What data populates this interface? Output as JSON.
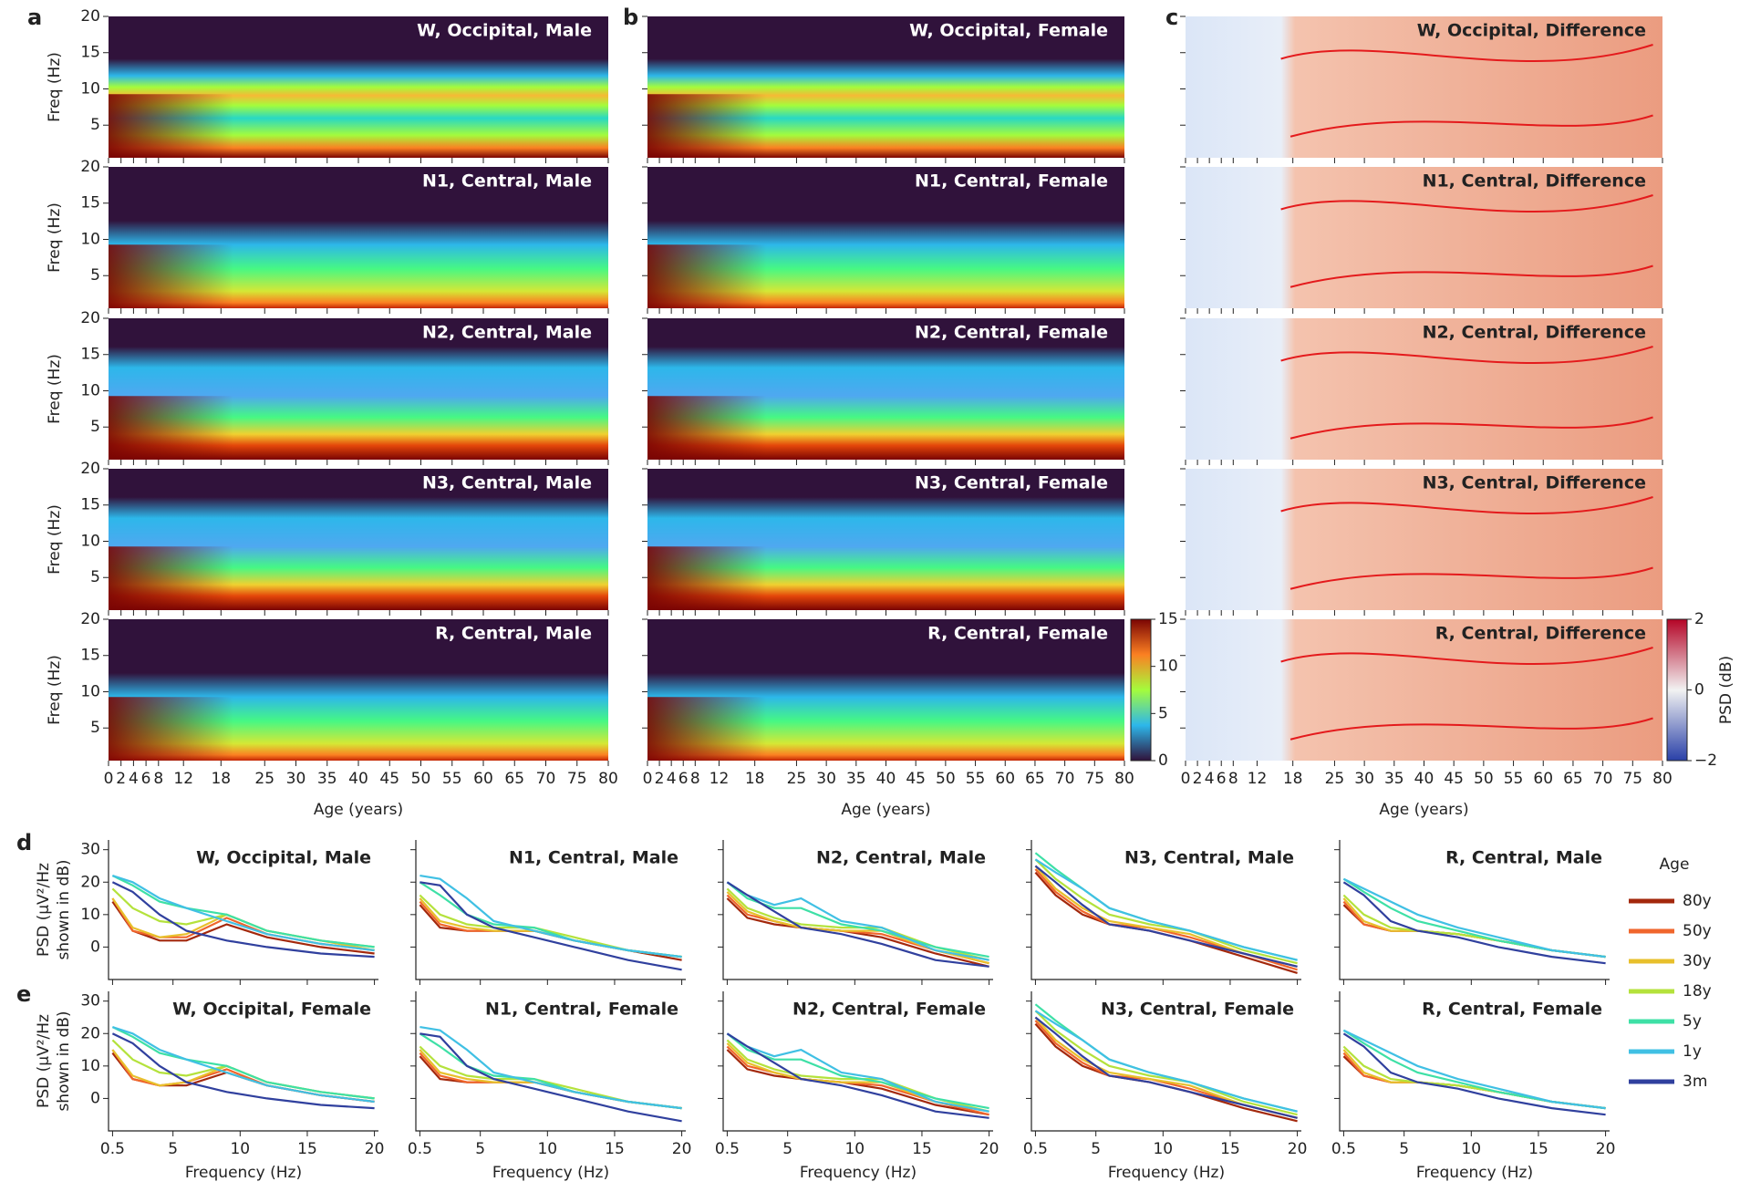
{
  "panel_labels": [
    "a",
    "b",
    "c",
    "d",
    "e"
  ],
  "chart_data": [
    {
      "type": "heatmap",
      "xlabel": "Age (years)",
      "ylabel": "Freq (Hz)",
      "xlim": [
        0,
        80
      ],
      "ylim": [
        0.5,
        20
      ],
      "xticks": [
        0,
        2,
        4,
        6,
        8,
        12,
        18,
        25,
        30,
        35,
        40,
        45,
        50,
        55,
        60,
        65,
        70,
        75,
        80
      ],
      "yticks": [
        5,
        10,
        15,
        20
      ],
      "titles": [
        "W, Occipital, Male",
        "N1, Central, Male",
        "N2, Central, Male",
        "N3, Central, Male",
        "R, Central, Male",
        "W, Occipital, Female",
        "N1, Central, Female",
        "N2, Central, Female",
        "N3, Central, Female",
        "R, Central, Female",
        "W, Occipital, Difference",
        "N1, Central, Difference",
        "N2, Central, Difference",
        "N3, Central, Difference",
        "R, Central, Difference"
      ],
      "colorbar_ab": {
        "lim": [
          0,
          15
        ],
        "ticks": [
          0,
          5,
          10,
          15
        ]
      },
      "colorbar_c": {
        "lim": [
          -2,
          2
        ],
        "ticks": [
          {
            "value": -2,
            "label": "−2"
          },
          0,
          2
        ],
        "label": "PSD (dB)"
      }
    },
    {
      "type": "line",
      "xlabel": "Frequency (Hz)",
      "ylabel": [
        "PSD (μV²/Hz",
        "shown in dB)"
      ],
      "xlim": [
        0.2,
        20.3
      ],
      "ylim": [
        -10,
        33
      ],
      "xticks": [
        0.5,
        5,
        10,
        15,
        20
      ],
      "yticks": [
        0,
        10,
        20,
        30
      ],
      "legend_title": "Age",
      "series_names": [
        "80y",
        "50y",
        "30y",
        "18y",
        "5y",
        "1y",
        "3m"
      ],
      "colors": [
        "#a3280c",
        "#f0662c",
        "#e8c02c",
        "#b4e23c",
        "#3ee0a6",
        "#40c0e4",
        "#30409e"
      ],
      "x": [
        0.5,
        2,
        4,
        6,
        9,
        12,
        16,
        20
      ],
      "panels": [
        {
          "title": "W, Occipital, Male",
          "series": [
            [
              14,
              5,
              2,
              2,
              7,
              3,
              0,
              -2
            ],
            [
              15,
              5,
              3,
              3,
              9,
              4,
              1,
              -1
            ],
            [
              15,
              6,
              3,
              4,
              10,
              5,
              2,
              -1
            ],
            [
              18,
              12,
              8,
              7,
              10,
              5,
              2,
              0
            ],
            [
              22,
              19,
              14,
              12,
              10,
              5,
              2,
              0
            ],
            [
              22,
              20,
              15,
              12,
              8,
              4,
              1,
              -1
            ],
            [
              20,
              17,
              10,
              5,
              2,
              0,
              -2,
              -3
            ]
          ]
        },
        {
          "title": "N1, Central, Male",
          "series": [
            [
              13,
              6,
              5,
              5,
              5,
              2,
              -1,
              -4
            ],
            [
              14,
              7,
              5,
              5,
              5,
              2,
              -1,
              -3
            ],
            [
              15,
              8,
              6,
              5,
              5,
              2,
              -1,
              -3
            ],
            [
              16,
              10,
              7,
              6,
              6,
              3,
              -1,
              -3
            ],
            [
              20,
              16,
              10,
              7,
              6,
              2,
              -1,
              -3
            ],
            [
              22,
              21,
              15,
              8,
              5,
              2,
              -1,
              -3
            ],
            [
              20,
              19,
              10,
              6,
              3,
              0,
              -4,
              -7
            ]
          ]
        },
        {
          "title": "N2, Central, Male",
          "series": [
            [
              15,
              9,
              7,
              6,
              5,
              3,
              -2,
              -6
            ],
            [
              16,
              10,
              8,
              6,
              5,
              4,
              -1,
              -5
            ],
            [
              17,
              11,
              8,
              6,
              5,
              5,
              -1,
              -5
            ],
            [
              18,
              12,
              9,
              7,
              6,
              6,
              0,
              -4
            ],
            [
              20,
              15,
              12,
              12,
              7,
              5,
              0,
              -3
            ],
            [
              20,
              16,
              13,
              15,
              8,
              6,
              -1,
              -4
            ],
            [
              20,
              16,
              11,
              6,
              4,
              1,
              -4,
              -6
            ]
          ]
        },
        {
          "title": "N3, Central, Male",
          "series": [
            [
              23,
              16,
              10,
              7,
              5,
              2,
              -3,
              -8
            ],
            [
              24,
              17,
              11,
              7,
              6,
              3,
              -2,
              -7
            ],
            [
              25,
              18,
              12,
              8,
              6,
              4,
              -2,
              -6
            ],
            [
              27,
              21,
              15,
              10,
              7,
              5,
              -1,
              -5
            ],
            [
              29,
              24,
              18,
              12,
              8,
              5,
              0,
              -4
            ],
            [
              27,
              23,
              18,
              12,
              8,
              5,
              0,
              -4
            ],
            [
              25,
              20,
              13,
              7,
              5,
              2,
              -2,
              -6
            ]
          ]
        },
        {
          "title": "R, Central, Male",
          "series": [
            [
              13,
              7,
              5,
              5,
              4,
              2,
              -1,
              -3
            ],
            [
              14,
              7,
              5,
              5,
              4,
              2,
              -1,
              -3
            ],
            [
              15,
              8,
              5,
              5,
              4,
              2,
              -1,
              -3
            ],
            [
              16,
              10,
              6,
              5,
              4,
              2,
              -1,
              -3
            ],
            [
              21,
              17,
              12,
              8,
              5,
              2,
              -1,
              -3
            ],
            [
              21,
              18,
              14,
              10,
              6,
              3,
              -1,
              -3
            ],
            [
              20,
              16,
              8,
              5,
              3,
              0,
              -3,
              -5
            ]
          ]
        },
        {
          "title": "W, Occipital, Female",
          "series": [
            [
              14,
              6,
              4,
              4,
              8,
              4,
              1,
              -1
            ],
            [
              15,
              6,
              4,
              5,
              9,
              4,
              1,
              -1
            ],
            [
              15,
              7,
              4,
              5,
              10,
              5,
              2,
              0
            ],
            [
              18,
              12,
              8,
              7,
              10,
              5,
              2,
              0
            ],
            [
              22,
              19,
              14,
              12,
              10,
              5,
              2,
              0
            ],
            [
              22,
              20,
              15,
              12,
              8,
              4,
              1,
              -1
            ],
            [
              20,
              17,
              10,
              5,
              2,
              0,
              -2,
              -3
            ]
          ]
        },
        {
          "title": "N1, Central, Female",
          "series": [
            [
              13,
              6,
              5,
              5,
              5,
              2,
              -1,
              -3
            ],
            [
              14,
              7,
              5,
              5,
              5,
              2,
              -1,
              -3
            ],
            [
              15,
              8,
              6,
              5,
              5,
              2,
              -1,
              -3
            ],
            [
              16,
              10,
              7,
              6,
              6,
              3,
              -1,
              -3
            ],
            [
              20,
              16,
              10,
              7,
              6,
              2,
              -1,
              -3
            ],
            [
              22,
              21,
              15,
              8,
              5,
              2,
              -1,
              -3
            ],
            [
              20,
              19,
              10,
              6,
              3,
              0,
              -4,
              -7
            ]
          ]
        },
        {
          "title": "N2, Central, Female",
          "series": [
            [
              15,
              9,
              7,
              6,
              5,
              3,
              -2,
              -5
            ],
            [
              16,
              10,
              8,
              6,
              5,
              4,
              -1,
              -5
            ],
            [
              17,
              11,
              8,
              6,
              5,
              5,
              -1,
              -4
            ],
            [
              18,
              12,
              9,
              7,
              6,
              6,
              0,
              -4
            ],
            [
              20,
              15,
              12,
              12,
              7,
              5,
              0,
              -3
            ],
            [
              20,
              16,
              13,
              15,
              8,
              6,
              -1,
              -4
            ],
            [
              20,
              16,
              11,
              6,
              4,
              1,
              -4,
              -6
            ]
          ]
        },
        {
          "title": "N3, Central, Female",
          "series": [
            [
              23,
              16,
              10,
              7,
              5,
              2,
              -3,
              -7
            ],
            [
              24,
              17,
              11,
              7,
              6,
              3,
              -2,
              -6
            ],
            [
              25,
              18,
              12,
              8,
              6,
              4,
              -2,
              -6
            ],
            [
              27,
              21,
              15,
              10,
              7,
              5,
              -1,
              -5
            ],
            [
              29,
              24,
              18,
              12,
              8,
              5,
              0,
              -4
            ],
            [
              27,
              23,
              18,
              12,
              8,
              5,
              0,
              -4
            ],
            [
              25,
              20,
              13,
              7,
              5,
              2,
              -2,
              -6
            ]
          ]
        },
        {
          "title": "R, Central, Female",
          "series": [
            [
              13,
              7,
              5,
              5,
              4,
              2,
              -1,
              -3
            ],
            [
              14,
              7,
              5,
              5,
              4,
              2,
              -1,
              -3
            ],
            [
              15,
              8,
              5,
              5,
              4,
              2,
              -1,
              -3
            ],
            [
              16,
              10,
              6,
              5,
              4,
              2,
              -1,
              -3
            ],
            [
              21,
              17,
              12,
              8,
              5,
              2,
              -1,
              -3
            ],
            [
              21,
              18,
              14,
              10,
              6,
              3,
              -1,
              -3
            ],
            [
              20,
              16,
              8,
              5,
              3,
              0,
              -3,
              -5
            ]
          ]
        }
      ]
    }
  ]
}
